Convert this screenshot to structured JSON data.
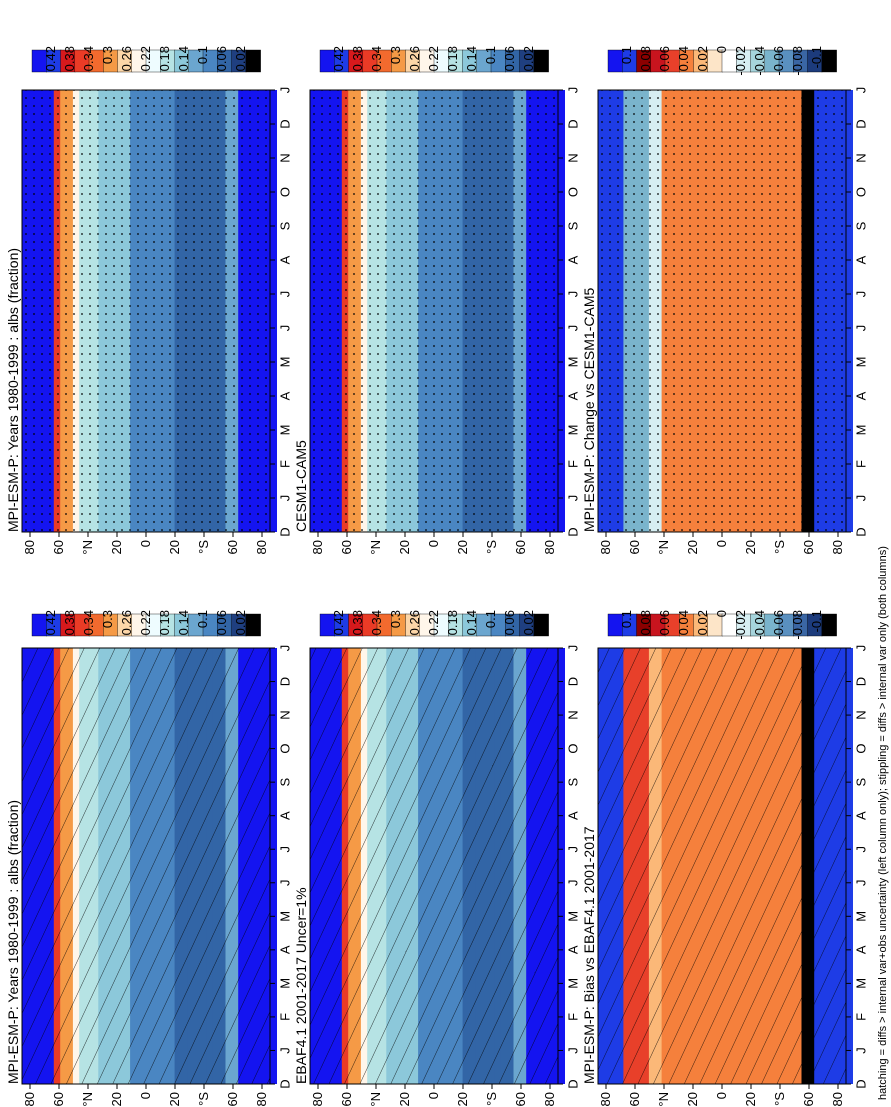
{
  "figure": {
    "footnote": "hatching = diffs > internal var+obs uncertainty (left column only); stippling = diffs > internal var only (both columns)"
  },
  "colors": {
    "abs_scale": [
      "#1414f0",
      "#1e3ce6",
      "#d7191c",
      "#ea3b26",
      "#f26a2e",
      "#f59a46",
      "#fcd6a8",
      "#fff6ea",
      "#eefcff",
      "#b6e3e4",
      "#8cc8da",
      "#6ba6cf",
      "#4a86c2",
      "#3265a6",
      "#1f3f80",
      "#000000"
    ],
    "diff_scale": [
      "#1414f0",
      "#1e3ce6",
      "#8b0000",
      "#c8141e",
      "#e8402a",
      "#f5803c",
      "#fbb878",
      "#fde5c8",
      "#ffffff",
      "#d6eef2",
      "#a6d4dc",
      "#7ab4cc",
      "#5a90c0",
      "#3a66a4",
      "#1c3b7c",
      "#000000"
    ]
  },
  "chart_data": [
    {
      "type": "heatmap",
      "panel": "top-left",
      "title": "MPI-ESM-P: Years 1980-1999 : albs (fraction)",
      "x_ticks": [
        "D",
        "J",
        "F",
        "M",
        "A",
        "M",
        "J",
        "J",
        "A",
        "S",
        "O",
        "N",
        "D",
        "J"
      ],
      "y_ticks": [
        "80",
        "60",
        "°N",
        "20",
        "0",
        "20",
        "°S",
        "60",
        "80"
      ],
      "colorbar_labels": [
        "0.42",
        "0.38",
        "0.34",
        "0.3",
        "0.26",
        "0.22",
        "0.18",
        "0.14",
        "0.1",
        "0.06",
        "0.02"
      ],
      "overlay": "hatching"
    },
    {
      "type": "heatmap",
      "panel": "top-right",
      "title": "MPI-ESM-P: Years 1980-1999 : albs (fraction)",
      "x_ticks": [
        "D",
        "J",
        "F",
        "M",
        "A",
        "M",
        "J",
        "J",
        "A",
        "S",
        "O",
        "N",
        "D",
        "J"
      ],
      "y_ticks": [
        "80",
        "60",
        "°N",
        "20",
        "0",
        "20",
        "°S",
        "60",
        "80"
      ],
      "colorbar_labels": [
        "0.42",
        "0.38",
        "0.34",
        "0.3",
        "0.26",
        "0.22",
        "0.18",
        "0.14",
        "0.1",
        "0.06",
        "0.02"
      ],
      "overlay": "stippling"
    },
    {
      "type": "heatmap",
      "panel": "middle-left",
      "title": "EBAF4.1 2001-2017 Uncer=1%",
      "x_ticks": [
        "D",
        "J",
        "F",
        "M",
        "A",
        "M",
        "J",
        "J",
        "A",
        "S",
        "O",
        "N",
        "D",
        "J"
      ],
      "y_ticks": [
        "80",
        "60",
        "°N",
        "20",
        "0",
        "20",
        "°S",
        "60",
        "80"
      ],
      "colorbar_labels": [
        "0.42",
        "0.38",
        "0.34",
        "0.3",
        "0.26",
        "0.22",
        "0.18",
        "0.14",
        "0.1",
        "0.06",
        "0.02"
      ],
      "overlay": "hatching"
    },
    {
      "type": "heatmap",
      "panel": "middle-right",
      "title": "CESM1-CAM5",
      "x_ticks": [
        "D",
        "J",
        "F",
        "M",
        "A",
        "M",
        "J",
        "J",
        "A",
        "S",
        "O",
        "N",
        "D",
        "J"
      ],
      "y_ticks": [
        "80",
        "60",
        "°N",
        "20",
        "0",
        "20",
        "°S",
        "60",
        "80"
      ],
      "colorbar_labels": [
        "0.42",
        "0.38",
        "0.34",
        "0.3",
        "0.26",
        "0.22",
        "0.18",
        "0.14",
        "0.1",
        "0.06",
        "0.02"
      ],
      "overlay": "stippling"
    },
    {
      "type": "heatmap",
      "panel": "bottom-left",
      "title": "MPI-ESM-P: Bias vs EBAF4.1 2001-2017",
      "x_ticks": [
        "D",
        "J",
        "F",
        "M",
        "A",
        "M",
        "J",
        "J",
        "A",
        "S",
        "O",
        "N",
        "D",
        "J"
      ],
      "y_ticks": [
        "80",
        "60",
        "°N",
        "20",
        "0",
        "20",
        "°S",
        "60",
        "80"
      ],
      "colorbar_labels": [
        "0.1",
        "0.08",
        "0.06",
        "0.04",
        "0.02",
        "0",
        "-0.02",
        "-0.04",
        "-0.06",
        "-0.08",
        "-0.1"
      ],
      "overlay": "hatching"
    },
    {
      "type": "heatmap",
      "panel": "bottom-right",
      "title": "MPI-ESM-P: Change vs CESM1-CAM5",
      "x_ticks": [
        "D",
        "J",
        "F",
        "M",
        "A",
        "M",
        "J",
        "J",
        "A",
        "S",
        "O",
        "N",
        "D",
        "J"
      ],
      "y_ticks": [
        "80",
        "60",
        "°N",
        "20",
        "0",
        "20",
        "°S",
        "60",
        "80"
      ],
      "colorbar_labels": [
        "0.1",
        "0.08",
        "0.06",
        "0.04",
        "0.02",
        "0",
        "-0.02",
        "-0.04",
        "-0.06",
        "-0.08",
        "-0.1"
      ],
      "overlay": "stippling"
    }
  ]
}
